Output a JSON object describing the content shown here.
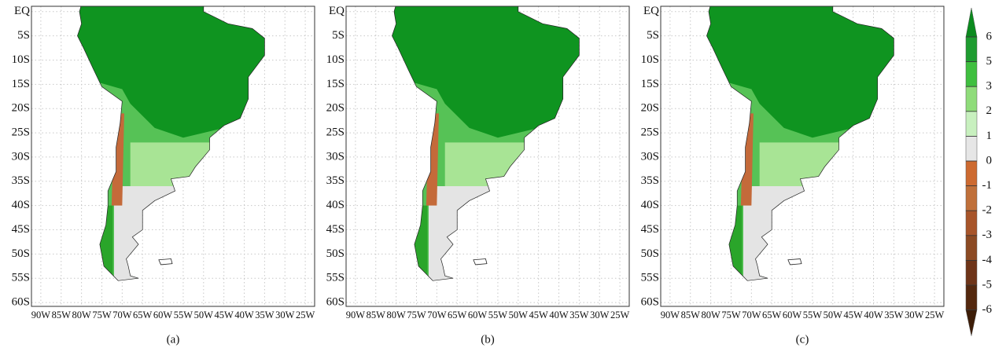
{
  "panels": [
    {
      "label": "(a)"
    },
    {
      "label": "(b)"
    },
    {
      "label": "(c)"
    }
  ],
  "lonlim": [
    -92.3,
    -22.7
  ],
  "latlim": [
    1.1,
    -60.8
  ],
  "lat_ticks": [
    {
      "value": 0,
      "label": "EQ"
    },
    {
      "value": -5,
      "label": "5S"
    },
    {
      "value": -10,
      "label": "10S"
    },
    {
      "value": -15,
      "label": "15S"
    },
    {
      "value": -20,
      "label": "20S"
    },
    {
      "value": -25,
      "label": "25S"
    },
    {
      "value": -30,
      "label": "30S"
    },
    {
      "value": -35,
      "label": "35S"
    },
    {
      "value": -40,
      "label": "40S"
    },
    {
      "value": -45,
      "label": "45S"
    },
    {
      "value": -50,
      "label": "50S"
    },
    {
      "value": -55,
      "label": "55S"
    },
    {
      "value": -60,
      "label": "60S"
    }
  ],
  "lon_ticks": [
    {
      "value": -90,
      "label": "90W"
    },
    {
      "value": -85,
      "label": "85W"
    },
    {
      "value": -80,
      "label": "80W"
    },
    {
      "value": -75,
      "label": "75W"
    },
    {
      "value": -70,
      "label": "70W"
    },
    {
      "value": -65,
      "label": "65W"
    },
    {
      "value": -60,
      "label": "60W"
    },
    {
      "value": -55,
      "label": "55W"
    },
    {
      "value": -50,
      "label": "50W"
    },
    {
      "value": -45,
      "label": "45W"
    },
    {
      "value": -40,
      "label": "40W"
    },
    {
      "value": -35,
      "label": "35W"
    },
    {
      "value": -30,
      "label": "30W"
    },
    {
      "value": -25,
      "label": "25W"
    }
  ],
  "colorbar": {
    "ticks": [
      6,
      5,
      3,
      2,
      1,
      0,
      -1,
      -2,
      -3,
      -4,
      -5,
      -6
    ],
    "colors": [
      "#0b8a1e",
      "#1e9c30",
      "#3fbf3f",
      "#8fdc7a",
      "#c8f0bf",
      "#e6e6e6",
      "#cd6a30",
      "#c0703a",
      "#a8552a",
      "#8c4a23",
      "#6e3418",
      "#54280e",
      "#3d1d08"
    ]
  }
}
